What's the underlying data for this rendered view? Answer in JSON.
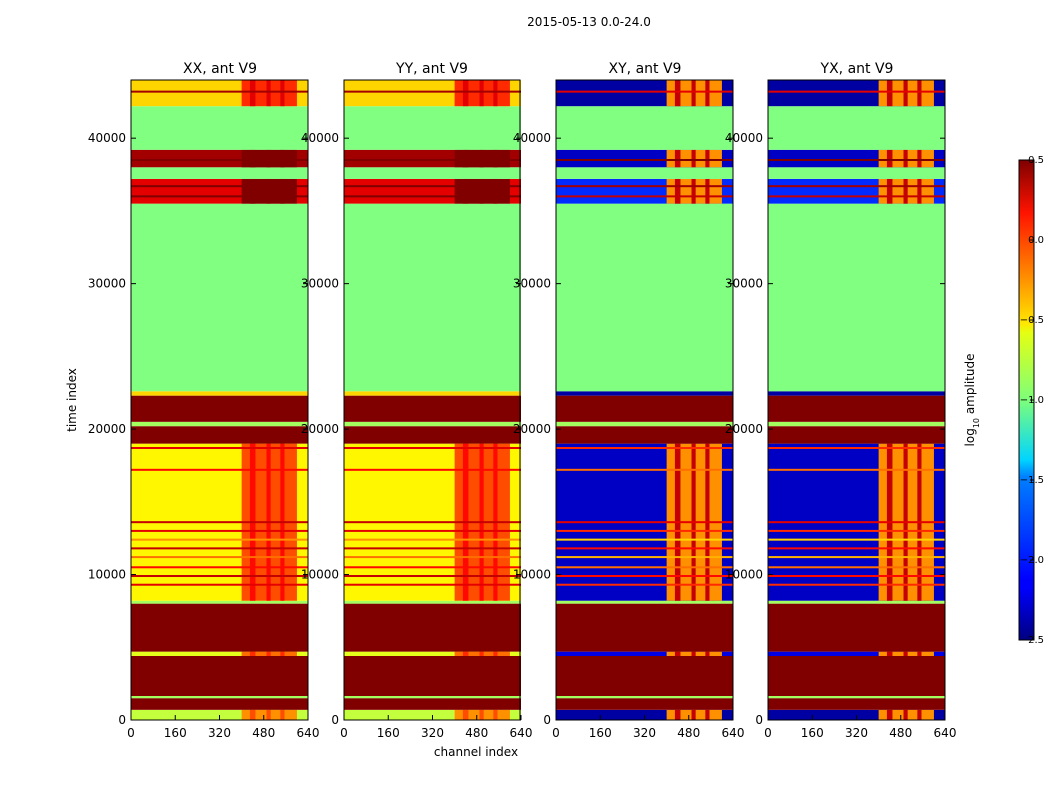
{
  "chart_data": {
    "type": "heatmap",
    "suptitle": "2015-05-13 0.0-24.0",
    "xlabel": "channel index",
    "ylabel": "time index",
    "xlim": [
      0,
      640
    ],
    "ylim": [
      0,
      44000
    ],
    "x_ticks": [
      "0",
      "160",
      "320",
      "480",
      "640"
    ],
    "y_ticks": [
      "0",
      "10000",
      "20000",
      "30000",
      "40000"
    ],
    "colorbar": {
      "label": "log10 amplitude",
      "label_main": "log",
      "label_sub": "10",
      "label_rest": " amplitude",
      "range": [
        -2.5,
        0.5
      ],
      "colormap": "jet",
      "ticks": [
        "0.5",
        "0.0",
        "−0.5",
        "−1.0",
        "−1.5",
        "−2.0",
        "−2.5"
      ]
    },
    "panels": [
      {
        "title": "XX, ant V9",
        "kind": "parallel"
      },
      {
        "title": "YY, ant V9",
        "kind": "parallel"
      },
      {
        "title": "XY, ant V9",
        "kind": "cross"
      },
      {
        "title": "YX, ant V9",
        "kind": "cross"
      }
    ],
    "time_bands": [
      {
        "t0": 0,
        "t1": 700,
        "parallel": -0.8,
        "cross": -2.4,
        "pattern": "mixed"
      },
      {
        "t0": 700,
        "t1": 1500,
        "parallel": 0.5,
        "cross": 0.5
      },
      {
        "t0": 1500,
        "t1": 1650,
        "parallel": -0.9,
        "cross": -0.9
      },
      {
        "t0": 1650,
        "t1": 4400,
        "parallel": 0.5,
        "cross": 0.5
      },
      {
        "t0": 4400,
        "t1": 4700,
        "parallel": -0.7,
        "cross": -2.2,
        "pattern": "mixed"
      },
      {
        "t0": 4700,
        "t1": 8000,
        "parallel": 0.5,
        "cross": 0.5
      },
      {
        "t0": 8000,
        "t1": 8200,
        "parallel": -0.9,
        "cross": -0.9
      },
      {
        "t0": 8200,
        "t1": 19000,
        "parallel": -0.6,
        "cross": -2.3,
        "pattern": "active"
      },
      {
        "t0": 19000,
        "t1": 20200,
        "parallel": 0.5,
        "cross": 0.5
      },
      {
        "t0": 20200,
        "t1": 20500,
        "parallel": -0.9,
        "cross": -0.9
      },
      {
        "t0": 20500,
        "t1": 22300,
        "parallel": 0.5,
        "cross": 0.5
      },
      {
        "t0": 22300,
        "t1": 22600,
        "parallel": -0.5,
        "cross": -2.4
      },
      {
        "t0": 22600,
        "t1": 35500,
        "parallel": -1.0,
        "cross": -1.0
      },
      {
        "t0": 35500,
        "t1": 37200,
        "parallel": 0.2,
        "cross": -2.0,
        "pattern": "active"
      },
      {
        "t0": 37200,
        "t1": 38000,
        "parallel": -1.0,
        "cross": -1.0
      },
      {
        "t0": 38000,
        "t1": 39200,
        "parallel": 0.4,
        "cross": -2.3,
        "pattern": "active"
      },
      {
        "t0": 39200,
        "t1": 42200,
        "parallel": -1.0,
        "cross": -1.0
      },
      {
        "t0": 42200,
        "t1": 44000,
        "parallel": -0.5,
        "cross": -2.4,
        "pattern": "active"
      }
    ],
    "stripes": [
      {
        "t": 9300,
        "parallel": 0.2,
        "cross": 0.0
      },
      {
        "t": 9900,
        "parallel": 0.3,
        "cross": 0.1
      },
      {
        "t": 10500,
        "parallel": 0.1,
        "cross": -0.2
      },
      {
        "t": 11200,
        "parallel": -0.2,
        "cross": -0.4
      },
      {
        "t": 11800,
        "parallel": 0.3,
        "cross": 0.1
      },
      {
        "t": 12400,
        "parallel": -0.3,
        "cross": -0.5
      },
      {
        "t": 13000,
        "parallel": 0.2,
        "cross": 0.0
      },
      {
        "t": 13600,
        "parallel": 0.3,
        "cross": 0.2
      },
      {
        "t": 17200,
        "parallel": 0.1,
        "cross": -0.2
      },
      {
        "t": 18700,
        "parallel": 0.2,
        "cross": 0.0
      },
      {
        "t": 36000,
        "parallel": 0.5,
        "cross": 0.3
      },
      {
        "t": 36700,
        "parallel": 0.5,
        "cross": 0.4
      },
      {
        "t": 38500,
        "parallel": 0.5,
        "cross": 0.5
      },
      {
        "t": 43200,
        "parallel": 0.4,
        "cross": 0.2
      }
    ],
    "active_channels": [
      {
        "c0": 400,
        "c1": 600,
        "parallel_boost": 0.5,
        "cross_level": -0.3
      },
      {
        "c0": 430,
        "c1": 450,
        "parallel_boost": 0.7,
        "cross_level": 0.3
      },
      {
        "c0": 490,
        "c1": 505,
        "parallel_boost": 0.7,
        "cross_level": 0.3
      },
      {
        "c0": 540,
        "c1": 555,
        "parallel_boost": 0.7,
        "cross_level": 0.3
      }
    ]
  }
}
